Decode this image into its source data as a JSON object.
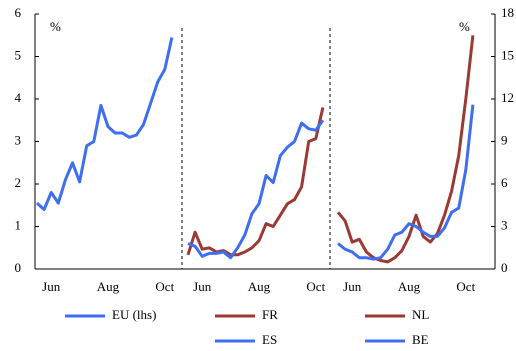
{
  "chart_data": {
    "type": "line",
    "ylabel": "%",
    "y2label": "%",
    "ylim": [
      0,
      6
    ],
    "yticks": [
      0,
      1,
      2,
      3,
      4,
      5,
      6
    ],
    "y2lim": [
      0,
      18
    ],
    "y2ticks": [
      0,
      3,
      6,
      9,
      12,
      15,
      18
    ],
    "panels": [
      {
        "categories": [
          null,
          null,
          "Jun",
          null,
          null,
          null,
          null,
          null,
          null,
          null,
          "Aug",
          null,
          null,
          null,
          null,
          null,
          null,
          null,
          "Oct",
          null
        ],
        "series": [
          {
            "name": "EU (lhs)",
            "color": "#3f6ef0",
            "axis": "y",
            "values": [
              1.55,
              1.4,
              1.8,
              1.55,
              2.1,
              2.5,
              2.05,
              2.9,
              3.0,
              3.85,
              3.35,
              3.2,
              3.2,
              3.1,
              3.15,
              3.4,
              3.9,
              4.4,
              4.7,
              5.45
            ]
          }
        ]
      },
      {
        "categories": [
          null,
          null,
          "Jun",
          null,
          null,
          null,
          null,
          null,
          null,
          null,
          "Aug",
          null,
          null,
          null,
          null,
          null,
          null,
          null,
          "Oct",
          null
        ],
        "series": [
          {
            "name": "FR",
            "color": "#9b3a34",
            "axis": "y2",
            "values": [
              1.0,
              2.6,
              1.4,
              1.5,
              1.2,
              1.3,
              1.0,
              1.0,
              1.2,
              1.5,
              2.0,
              3.2,
              3.0,
              3.8,
              4.6,
              4.9,
              5.8,
              9.0,
              9.2,
              11.4
            ]
          },
          {
            "name": "ES",
            "color": "#3f6ef0",
            "axis": "y2",
            "values": [
              1.8,
              1.6,
              0.9,
              1.1,
              1.1,
              1.2,
              0.8,
              1.5,
              2.4,
              3.9,
              4.6,
              6.6,
              6.1,
              8.0,
              8.6,
              9.0,
              10.3,
              9.9,
              9.8,
              10.5
            ]
          }
        ]
      },
      {
        "categories": [
          null,
          null,
          "Jun",
          null,
          null,
          null,
          null,
          null,
          null,
          null,
          "Aug",
          null,
          null,
          null,
          null,
          null,
          null,
          null,
          "Oct",
          null
        ],
        "series": [
          {
            "name": "NL",
            "color": "#9b3a34",
            "axis": "y2",
            "values": [
              4.0,
              3.4,
              1.9,
              2.1,
              1.2,
              0.8,
              0.6,
              0.5,
              0.8,
              1.3,
              2.3,
              3.8,
              2.3,
              1.9,
              2.5,
              3.8,
              5.5,
              8.0,
              12.0,
              16.5
            ]
          },
          {
            "name": "BE",
            "color": "#3f6ef0",
            "axis": "y2",
            "values": [
              1.8,
              1.4,
              1.2,
              0.8,
              0.8,
              0.7,
              0.8,
              1.4,
              2.4,
              2.6,
              3.2,
              3.0,
              2.6,
              2.3,
              2.3,
              2.9,
              4.0,
              4.3,
              7.0,
              11.6
            ]
          }
        ]
      }
    ]
  }
}
